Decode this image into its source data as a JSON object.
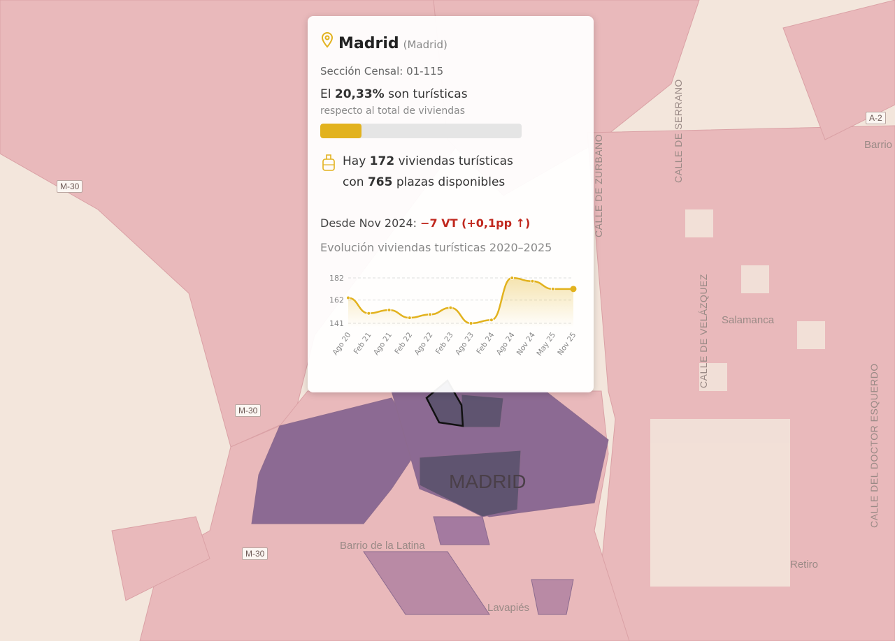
{
  "map": {
    "place_labels": [
      "MADRID",
      "Salamanca",
      "Barrio de la Latina",
      "Lavapiés",
      "Retiro",
      "Barrio"
    ],
    "street_labels": [
      "CALLE DE SERRANO",
      "CALLE DE ZURBANO",
      "CALLE DE VELÁZQUEZ",
      "CALLE DEL DOCTOR ESQUERDO"
    ],
    "road_shields": [
      "M-30",
      "M-30",
      "M-30",
      "A-2"
    ],
    "colors": {
      "low": "#e8b5b8",
      "mid": "#c58a9d",
      "high": "#7f5b8a",
      "highest": "#5c4c6a",
      "base": "#f3e6dc"
    }
  },
  "popup": {
    "title": "Madrid",
    "subtitle": "(Madrid)",
    "section": "Sección Censal: 01-115",
    "pct_prefix": "El ",
    "pct_value": "20,33%",
    "pct_suffix": " son turísticas",
    "pct_note": "respecto al total de viviendas",
    "pct_fraction": 0.2033,
    "hay_prefix": "Hay ",
    "count": "172",
    "hay_mid": " viviendas turísticas",
    "con_prefix": "con ",
    "plazas": "765",
    "con_suffix": " plazas disponibles",
    "since_label": "Desde Nov 2024: ",
    "since_change": "−7 VT (+0,1pp ↑)",
    "evolution_title": "Evolución viviendas turísticas 2020–2025",
    "accent": "#e2b21e"
  },
  "chart_data": {
    "type": "area",
    "categories": [
      "Ago 20",
      "Feb 21",
      "Ago 21",
      "Feb 22",
      "Ago 22",
      "Feb 23",
      "Ago 23",
      "Feb 24",
      "Ago 24",
      "Nov 24",
      "May 25",
      "Nov 25"
    ],
    "values": [
      164,
      150,
      153,
      146,
      149,
      155,
      141,
      144,
      182,
      179,
      172,
      172
    ],
    "yticks": [
      141,
      162,
      182
    ],
    "ylim": [
      141,
      182
    ],
    "grid": true
  }
}
